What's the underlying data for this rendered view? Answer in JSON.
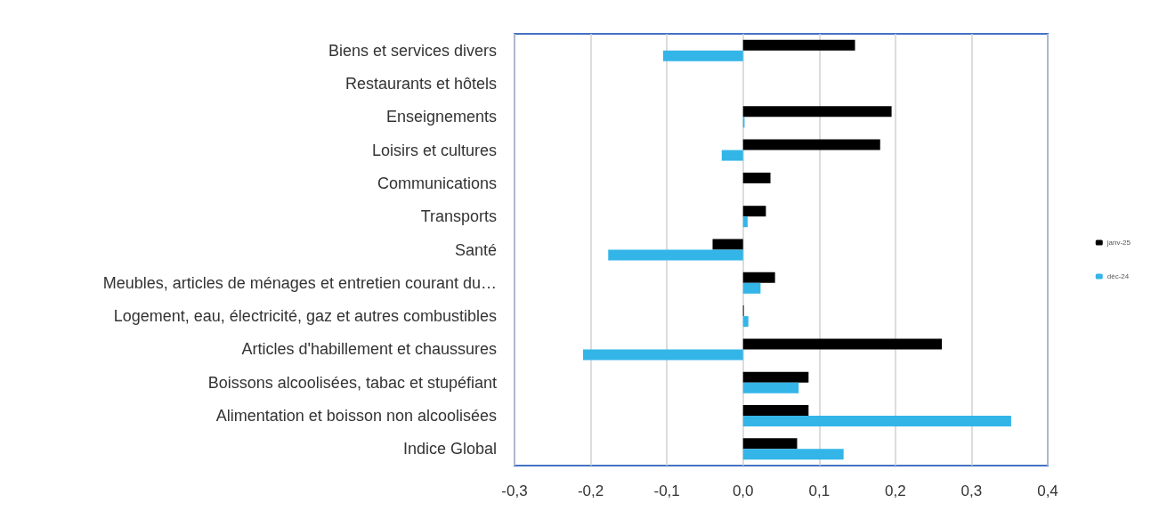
{
  "chart_data": {
    "type": "bar",
    "orientation": "horizontal",
    "categories": [
      "Biens et services divers",
      "Restaurants et hôtels",
      "Enseignements",
      "Loisirs et cultures",
      "Communications",
      "Transports",
      "Santé",
      "Meubles, articles de ménages et entretien courant du…",
      "Logement, eau, électricité, gaz et autres combustibles",
      "Articles d'habillement et chaussures",
      "Boissons alcoolisées, tabac et stupéfiant",
      "Alimentation et boisson non alcoolisées",
      "Indice Global"
    ],
    "series": [
      {
        "name": "janv-25",
        "color": "#000000",
        "values": [
          0.147,
          0,
          0.195,
          0.18,
          0.036,
          0.03,
          -0.04,
          0.042,
          0.001,
          0.261,
          0.086,
          0.086,
          0.071
        ]
      },
      {
        "name": "déc-24",
        "color": "#33b5e8",
        "values": [
          -0.105,
          0,
          0.002,
          -0.028,
          0,
          0.006,
          -0.177,
          0.023,
          0.007,
          -0.21,
          0.073,
          0.352,
          0.132
        ]
      }
    ],
    "xlim": [
      -0.3,
      0.4
    ],
    "xticks": [
      {
        "value": -0.3,
        "label": "-0,3"
      },
      {
        "value": -0.2,
        "label": "-0,2"
      },
      {
        "value": -0.1,
        "label": "-0,1"
      },
      {
        "value": 0,
        "label": "0,0"
      },
      {
        "value": 0.1,
        "label": "0,1"
      },
      {
        "value": 0.2,
        "label": "0,2"
      },
      {
        "value": 0.3,
        "label": "0,3"
      },
      {
        "value": 0.4,
        "label": "0,4"
      }
    ],
    "grid": "x",
    "legend": "right"
  }
}
